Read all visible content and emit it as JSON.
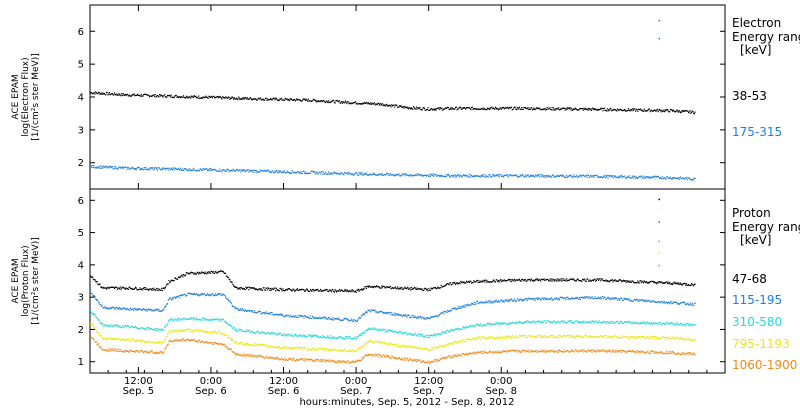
{
  "footer": "hours:minutes, Sep.  5, 2012 - Sep.  8, 2012",
  "chart_data": [
    {
      "type": "scatter",
      "ylabel_lines": [
        "ACE EPAM",
        "log(Electron Flux)",
        "[1/(cm²s ster MeV)]"
      ],
      "ylim": [
        1.2,
        6.8
      ],
      "yticks": [
        2,
        3,
        4,
        5,
        6
      ],
      "legend_title": [
        "Electron",
        "Energy range",
        "[keV]"
      ],
      "series": [
        {
          "name": "38-53",
          "color": "#000000",
          "x": [
            0,
            6,
            12,
            24,
            36,
            48,
            52,
            56,
            60,
            72,
            84,
            96,
            100
          ],
          "y": [
            4.15,
            4.08,
            4.05,
            3.98,
            3.92,
            3.8,
            3.7,
            3.65,
            3.67,
            3.67,
            3.64,
            3.6,
            3.55
          ]
        },
        {
          "name": "175-315",
          "color": "#1f7fd8",
          "x": [
            0,
            6,
            12,
            24,
            36,
            48,
            60,
            72,
            84,
            96,
            100
          ],
          "y": [
            1.9,
            1.85,
            1.83,
            1.78,
            1.72,
            1.66,
            1.62,
            1.62,
            1.6,
            1.56,
            1.52
          ]
        }
      ],
      "spikes": [
        {
          "x": 94,
          "y": 6.35,
          "color": "#1f7fd8"
        },
        {
          "x": 94,
          "y": 5.8,
          "color": "#1f7fd8"
        }
      ]
    },
    {
      "type": "scatter",
      "ylabel_lines": [
        "ACE EPAM",
        "log(Proton Flux)",
        "[1/(cm²s ster MeV)]"
      ],
      "ylim": [
        0.65,
        6.35
      ],
      "yticks": [
        1,
        2,
        3,
        4,
        5,
        6
      ],
      "legend_title": [
        "Proton",
        "Energy range",
        "[keV]"
      ],
      "xlim": [
        0,
        105
      ],
      "xticks": [
        {
          "x": 8,
          "time": "12:00",
          "date": "Sep. 5"
        },
        {
          "x": 20,
          "time": "0:00",
          "date": "Sep. 6"
        },
        {
          "x": 32,
          "time": "12:00",
          "date": "Sep. 6"
        },
        {
          "x": 44,
          "time": "0:00",
          "date": "Sep. 7"
        },
        {
          "x": 56,
          "time": "12:00",
          "date": "Sep. 7"
        },
        {
          "x": 68,
          "time": "0:00",
          "date": "Sep. 8"
        }
      ],
      "series": [
        {
          "name": "47-68",
          "color": "#000000",
          "x": [
            0,
            2,
            6,
            12,
            13,
            16,
            22,
            24,
            32,
            44,
            46,
            56,
            60,
            64,
            72,
            84,
            96,
            100
          ],
          "y": [
            3.7,
            3.3,
            3.3,
            3.25,
            3.5,
            3.75,
            3.8,
            3.3,
            3.25,
            3.2,
            3.35,
            3.25,
            3.45,
            3.5,
            3.55,
            3.55,
            3.45,
            3.4
          ]
        },
        {
          "name": "115-195",
          "color": "#1f7fd8",
          "x": [
            0,
            2,
            6,
            12,
            13,
            16,
            22,
            24,
            32,
            44,
            46,
            56,
            60,
            64,
            72,
            84,
            96,
            100
          ],
          "y": [
            3.2,
            2.7,
            2.65,
            2.6,
            2.95,
            3.1,
            3.1,
            2.65,
            2.45,
            2.3,
            2.6,
            2.35,
            2.65,
            2.85,
            2.95,
            3.0,
            2.85,
            2.8
          ]
        },
        {
          "name": "310-580",
          "color": "#2ad6d6",
          "x": [
            0,
            2,
            6,
            12,
            13,
            16,
            22,
            24,
            32,
            44,
            46,
            56,
            60,
            64,
            72,
            84,
            96,
            100
          ],
          "y": [
            2.6,
            2.15,
            2.1,
            2.0,
            2.3,
            2.35,
            2.3,
            2.0,
            1.85,
            1.75,
            2.05,
            1.8,
            2.0,
            2.15,
            2.25,
            2.25,
            2.2,
            2.15
          ]
        },
        {
          "name": "795-1193",
          "color": "#e8e81a",
          "x": [
            0,
            2,
            6,
            12,
            13,
            16,
            22,
            24,
            32,
            44,
            46,
            56,
            60,
            64,
            72,
            84,
            96,
            100
          ],
          "y": [
            2.2,
            1.75,
            1.7,
            1.6,
            1.95,
            2.0,
            1.9,
            1.6,
            1.45,
            1.35,
            1.65,
            1.4,
            1.6,
            1.75,
            1.8,
            1.8,
            1.75,
            1.7
          ]
        },
        {
          "name": "1060-1900",
          "color": "#f08a1a",
          "x": [
            0,
            2,
            6,
            12,
            13,
            16,
            22,
            24,
            32,
            44,
            46,
            56,
            60,
            64,
            72,
            84,
            96,
            100
          ],
          "y": [
            1.8,
            1.4,
            1.35,
            1.3,
            1.65,
            1.7,
            1.55,
            1.25,
            1.1,
            1.0,
            1.25,
            1.0,
            1.2,
            1.3,
            1.35,
            1.35,
            1.3,
            1.25
          ]
        }
      ],
      "spikes": [
        {
          "x": 94,
          "y": 6.05,
          "color": "#000000"
        },
        {
          "x": 94,
          "y": 5.35,
          "color": "#1f7fd8"
        },
        {
          "x": 94,
          "y": 4.75,
          "color": "#2ad6d6"
        },
        {
          "x": 94,
          "y": 4.4,
          "color": "#e8e81a"
        },
        {
          "x": 94,
          "y": 4.0,
          "color": "#f08a1a"
        }
      ]
    }
  ]
}
